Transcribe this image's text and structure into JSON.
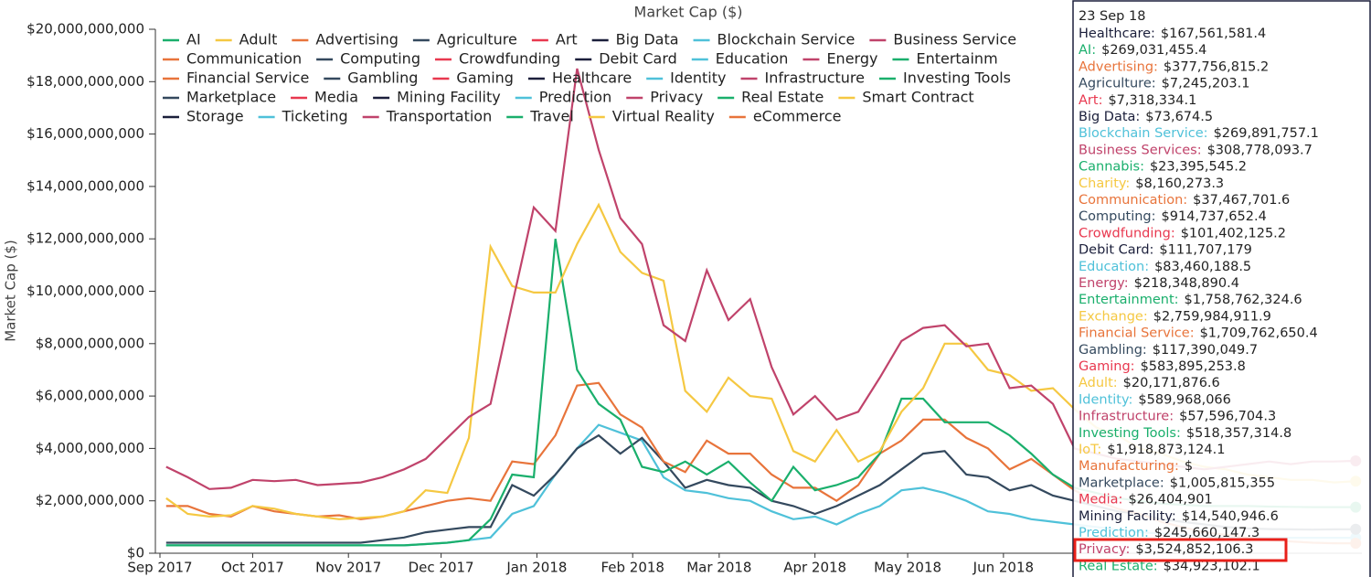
{
  "chart_data": {
    "type": "line",
    "title": "Market Cap ($)",
    "y_label": "Market Cap ($)",
    "xlim": [
      "2017-09-01",
      "2018-09-25"
    ],
    "xticks": [
      {
        "value": "2017-09-01",
        "label": "Sep 2017"
      },
      {
        "value": "2017-10-01",
        "label": "Oct 2017"
      },
      {
        "value": "2017-11-01",
        "label": "Nov 2017"
      },
      {
        "value": "2017-12-01",
        "label": "Dec 2017"
      },
      {
        "value": "2018-01-01",
        "label": "Jan 2018"
      },
      {
        "value": "2018-02-01",
        "label": "Feb 2018"
      },
      {
        "value": "2018-03-01",
        "label": "Mar 2018"
      },
      {
        "value": "2018-04-01",
        "label": "Apr 2018"
      },
      {
        "value": "2018-05-01",
        "label": "May 2018"
      },
      {
        "value": "2018-06-01",
        "label": "Jun 2018"
      }
    ],
    "ylim": [
      0,
      20000000000
    ],
    "yticks": [
      {
        "value": 0,
        "label": "$0"
      },
      {
        "value": 2000000000,
        "label": "$2,000,000,000"
      },
      {
        "value": 4000000000,
        "label": "$4,000,000,000"
      },
      {
        "value": 6000000000,
        "label": "$6,000,000,000"
      },
      {
        "value": 8000000000,
        "label": "$8,000,000,000"
      },
      {
        "value": 10000000000,
        "label": "$10,000,000,000"
      },
      {
        "value": 12000000000,
        "label": "$12,000,000,000"
      },
      {
        "value": 14000000000,
        "label": "$14,000,000,000"
      },
      {
        "value": 16000000000,
        "label": "$16,000,000,000"
      },
      {
        "value": 18000000000,
        "label": "$18,000,000,000"
      },
      {
        "value": 20000000000,
        "label": "$20,000,000,000"
      }
    ],
    "x": [
      "2017-09-03",
      "2017-09-10",
      "2017-09-17",
      "2017-09-24",
      "2017-10-01",
      "2017-10-08",
      "2017-10-15",
      "2017-10-22",
      "2017-10-29",
      "2017-11-05",
      "2017-11-12",
      "2017-11-19",
      "2017-11-26",
      "2017-12-03",
      "2017-12-10",
      "2017-12-17",
      "2017-12-24",
      "2017-12-31",
      "2018-01-07",
      "2018-01-14",
      "2018-01-21",
      "2018-01-28",
      "2018-02-04",
      "2018-02-11",
      "2018-02-18",
      "2018-02-25",
      "2018-03-04",
      "2018-03-11",
      "2018-03-18",
      "2018-03-25",
      "2018-04-01",
      "2018-04-08",
      "2018-04-15",
      "2018-04-22",
      "2018-04-29",
      "2018-05-06",
      "2018-05-13",
      "2018-05-20",
      "2018-05-27",
      "2018-06-03",
      "2018-06-10",
      "2018-06-17",
      "2018-06-24",
      "2018-07-01",
      "2018-07-08",
      "2018-07-15",
      "2018-07-22",
      "2018-07-29",
      "2018-08-05",
      "2018-08-12",
      "2018-08-19",
      "2018-08-26",
      "2018-09-02",
      "2018-09-09",
      "2018-09-16",
      "2018-09-23"
    ],
    "series": [
      {
        "name": "Identity",
        "color": "#4fc1d9",
        "values": [
          300000000.0,
          300000000.0,
          300000000.0,
          300000000.0,
          300000000.0,
          300000000.0,
          300000000.0,
          300000000.0,
          300000000.0,
          300000000.0,
          300000000.0,
          300000000.0,
          350000000.0,
          400000000.0,
          500000000.0,
          600000000.0,
          1500000000.0,
          1800000000.0,
          3000000000.0,
          4000000000.0,
          4900000000.0,
          4600000000.0,
          4300000000.0,
          2900000000.0,
          2400000000.0,
          2300000000.0,
          2100000000.0,
          2000000000.0,
          1600000000.0,
          1300000000.0,
          1400000000.0,
          1100000000.0,
          1500000000.0,
          1800000000.0,
          2400000000.0,
          2500000000.0,
          2300000000.0,
          2000000000.0,
          1600000000.0,
          1500000000.0,
          1300000000.0,
          1200000000.0,
          1100000000.0,
          1000000000.0,
          900000000.0,
          800000000.0,
          750000000.0,
          700000000.0,
          650000000.0,
          600000000.0,
          590000000.0,
          590000000.0,
          590000000.0,
          590000000.0,
          590000000.0,
          589968066
        ]
      },
      {
        "name": "Computing",
        "color": "#34495e",
        "values": [
          400000000.0,
          400000000.0,
          400000000.0,
          400000000.0,
          400000000.0,
          400000000.0,
          400000000.0,
          400000000.0,
          400000000.0,
          400000000.0,
          500000000.0,
          600000000.0,
          800000000.0,
          900000000.0,
          1000000000.0,
          1000000000.0,
          2600000000.0,
          2200000000.0,
          3000000000.0,
          4000000000.0,
          4500000000.0,
          3800000000.0,
          4400000000.0,
          3500000000.0,
          2500000000.0,
          2800000000.0,
          2600000000.0,
          2500000000.0,
          2000000000.0,
          1800000000.0,
          1500000000.0,
          1800000000.0,
          2200000000.0,
          2600000000.0,
          3200000000.0,
          3800000000.0,
          3900000000.0,
          3000000000.0,
          2900000000.0,
          2400000000.0,
          2600000000.0,
          2200000000.0,
          2000000000.0,
          1800000000.0,
          1600000000.0,
          1500000000.0,
          1300000000.0,
          1200000000.0,
          1100000000.0,
          1000000000.0,
          950000000.0,
          920000000.0,
          910000000.0,
          900000000.0,
          910000000.0,
          914737652.4
        ]
      },
      {
        "name": "Advertising",
        "color": "#e8743b",
        "values": [
          1800000000.0,
          1800000000.0,
          1500000000.0,
          1400000000.0,
          1800000000.0,
          1600000000.0,
          1500000000.0,
          1400000000.0,
          1450000000.0,
          1300000000.0,
          1400000000.0,
          1600000000.0,
          1800000000.0,
          2000000000.0,
          2100000000.0,
          2000000000.0,
          3500000000.0,
          3400000000.0,
          4500000000.0,
          6400000000.0,
          6500000000.0,
          5300000000.0,
          4800000000.0,
          3500000000.0,
          3100000000.0,
          4300000000.0,
          3800000000.0,
          3800000000.0,
          3000000000.0,
          2500000000.0,
          2500000000.0,
          2000000000.0,
          2600000000.0,
          3800000000.0,
          4300000000.0,
          5100000000.0,
          5100000000.0,
          4400000000.0,
          4000000000.0,
          3200000000.0,
          3600000000.0,
          3000000000.0,
          2400000000.0,
          2000000000.0,
          1700000000.0,
          1500000000.0,
          1200000000.0,
          1000000000.0,
          800000000.0,
          700000000.0,
          600000000.0,
          500000000.0,
          450000000.0,
          400000000.0,
          380000000.0,
          377756815.2
        ]
      },
      {
        "name": "Entertainment",
        "color": "#1aaf6c",
        "values": [
          300000000.0,
          300000000.0,
          300000000.0,
          300000000.0,
          300000000.0,
          300000000.0,
          300000000.0,
          300000000.0,
          300000000.0,
          300000000.0,
          300000000.0,
          300000000.0,
          350000000.0,
          400000000.0,
          500000000.0,
          1300000000.0,
          3000000000.0,
          2900000000.0,
          12000000000.0,
          7000000000.0,
          5700000000.0,
          5100000000.0,
          3300000000.0,
          3100000000.0,
          3500000000.0,
          3000000000.0,
          3500000000.0,
          2700000000.0,
          2000000000.0,
          3300000000.0,
          2400000000.0,
          2600000000.0,
          2900000000.0,
          3800000000.0,
          5900000000.0,
          5900000000.0,
          5000000000.0,
          5000000000.0,
          5000000000.0,
          4500000000.0,
          3800000000.0,
          3000000000.0,
          2500000000.0,
          2300000000.0,
          2100000000.0,
          2000000000.0,
          1900000000.0,
          1850000000.0,
          1800000000.0,
          1800000000.0,
          1800000000.0,
          1780000000.0,
          1770000000.0,
          1760000000.0,
          1760000000.0,
          1758762324.6
        ]
      },
      {
        "name": "Smart Contract",
        "color": "#f5c842",
        "values": [
          2100000000.0,
          1500000000.0,
          1400000000.0,
          1450000000.0,
          1800000000.0,
          1700000000.0,
          1500000000.0,
          1400000000.0,
          1300000000.0,
          1350000000.0,
          1400000000.0,
          1600000000.0,
          2400000000.0,
          2300000000.0,
          4400000000.0,
          11700000000.0,
          10200000000.0,
          9950000000.0,
          9950000000.0,
          11800000000.0,
          13300000000.0,
          11500000000.0,
          10700000000.0,
          10400000000.0,
          6200000000.0,
          5400000000.0,
          6700000000.0,
          6000000000.0,
          5900000000.0,
          3900000000.0,
          3500000000.0,
          4700000000.0,
          3500000000.0,
          3900000000.0,
          5400000000.0,
          6300000000.0,
          8000000000.0,
          8000000000.0,
          7000000000.0,
          6800000000.0,
          6200000000.0,
          6300000000.0,
          5500000000.0,
          4800000000.0,
          4500000000.0,
          4000000000.0,
          3800000000.0,
          3500000000.0,
          3300000000.0,
          3200000000.0,
          3000000000.0,
          2900000000.0,
          2800000000.0,
          2800000000.0,
          2700000000.0,
          2750000000.0
        ]
      },
      {
        "name": "Privacy",
        "color": "#c0436b",
        "values": [
          3300000000.0,
          2900000000.0,
          2450000000.0,
          2500000000.0,
          2800000000.0,
          2750000000.0,
          2800000000.0,
          2600000000.0,
          2650000000.0,
          2700000000.0,
          2900000000.0,
          3200000000.0,
          3600000000.0,
          4400000000.0,
          5200000000.0,
          5700000000.0,
          9500000000.0,
          13200000000.0,
          12300000000.0,
          18500000000.0,
          15400000000.0,
          12800000000.0,
          11800000000.0,
          8700000000.0,
          8100000000.0,
          10800000000.0,
          8900000000.0,
          9700000000.0,
          7100000000.0,
          5300000000.0,
          6000000000.0,
          5100000000.0,
          5400000000.0,
          6700000000.0,
          8100000000.0,
          8600000000.0,
          8700000000.0,
          7900000000.0,
          8000000000.0,
          6300000000.0,
          6400000000.0,
          5700000000.0,
          4000000000.0,
          3800000000.0,
          3600000000.0,
          3500000000.0,
          3400000000.0,
          3300000000.0,
          3200000000.0,
          3300000000.0,
          3400000000.0,
          3500000000.0,
          3400000000.0,
          3500000000.0,
          3500000000.0,
          3524852106.3
        ]
      }
    ],
    "legend": [
      [
        {
          "name": "AI",
          "color": "#1aaf6c"
        },
        {
          "name": "Adult",
          "color": "#f5c842"
        },
        {
          "name": "Advertising",
          "color": "#e8743b"
        },
        {
          "name": "Agriculture",
          "color": "#34495e"
        },
        {
          "name": "Art",
          "color": "#e8384f"
        },
        {
          "name": "Big Data",
          "color": "#1b1f3b"
        },
        {
          "name": "Blockchain Service",
          "color": "#4fc1d9"
        },
        {
          "name": "Business Service",
          "color": "#c0436b"
        }
      ],
      [
        {
          "name": "Communication",
          "color": "#e8743b"
        },
        {
          "name": "Computing",
          "color": "#34495e"
        },
        {
          "name": "Crowdfunding",
          "color": "#e8384f"
        },
        {
          "name": "Debit Card",
          "color": "#1b1f3b"
        },
        {
          "name": "Education",
          "color": "#4fc1d9"
        },
        {
          "name": "Energy",
          "color": "#c0436b"
        },
        {
          "name": "Entertainm",
          "color": "#1aaf6c"
        }
      ],
      [
        {
          "name": "Financial Service",
          "color": "#e8743b"
        },
        {
          "name": "Gambling",
          "color": "#34495e"
        },
        {
          "name": "Gaming",
          "color": "#e8384f"
        },
        {
          "name": "Healthcare",
          "color": "#1b1f3b"
        },
        {
          "name": "Identity",
          "color": "#4fc1d9"
        },
        {
          "name": "Infrastructure",
          "color": "#c0436b"
        },
        {
          "name": "Investing Tools",
          "color": "#1aaf6c"
        }
      ],
      [
        {
          "name": "Marketplace",
          "color": "#34495e"
        },
        {
          "name": "Media",
          "color": "#e8384f"
        },
        {
          "name": "Mining Facility",
          "color": "#1b1f3b"
        },
        {
          "name": "Prediction",
          "color": "#4fc1d9"
        },
        {
          "name": "Privacy",
          "color": "#c0436b"
        },
        {
          "name": "Real Estate",
          "color": "#1aaf6c"
        },
        {
          "name": "Smart Contract",
          "color": "#f5c842"
        }
      ],
      [
        {
          "name": "Storage",
          "color": "#1b1f3b"
        },
        {
          "name": "Ticketing",
          "color": "#4fc1d9"
        },
        {
          "name": "Transportation",
          "color": "#c0436b"
        },
        {
          "name": "Travel",
          "color": "#1aaf6c"
        },
        {
          "name": "Virtual Reality",
          "color": "#f5c842"
        },
        {
          "name": "eCommerce",
          "color": "#e8743b"
        }
      ]
    ]
  },
  "tooltip": {
    "date": "23 Sep 18",
    "entries": [
      {
        "label": "Healthcare:",
        "value": "$167,561,581.4",
        "color": "#1b1f3b"
      },
      {
        "label": "AI:",
        "value": "$269,031,455.4",
        "color": "#1aaf6c"
      },
      {
        "label": "Advertising:",
        "value": "$377,756,815.2",
        "color": "#e8743b"
      },
      {
        "label": "Agriculture:",
        "value": "$7,245,203.1",
        "color": "#34495e"
      },
      {
        "label": "Art:",
        "value": "$7,318,334.1",
        "color": "#e8384f"
      },
      {
        "label": "Big Data:",
        "value": "$73,674.5",
        "color": "#1b1f3b"
      },
      {
        "label": "Blockchain Service:",
        "value": "$269,891,757.1",
        "color": "#4fc1d9"
      },
      {
        "label": "Business Services:",
        "value": "$308,778,093.7",
        "color": "#c0436b"
      },
      {
        "label": "Cannabis:",
        "value": "$23,395,545.2",
        "color": "#1aaf6c"
      },
      {
        "label": "Charity:",
        "value": "$8,160,273.3",
        "color": "#f5c842"
      },
      {
        "label": "Communication:",
        "value": "$37,467,701.6",
        "color": "#e8743b"
      },
      {
        "label": "Computing:",
        "value": "$914,737,652.4",
        "color": "#34495e"
      },
      {
        "label": "Crowdfunding:",
        "value": "$101,402,125.2",
        "color": "#e8384f"
      },
      {
        "label": "Debit Card:",
        "value": "$111,707,179",
        "color": "#1b1f3b"
      },
      {
        "label": "Education:",
        "value": "$83,460,188.5",
        "color": "#4fc1d9"
      },
      {
        "label": "Energy:",
        "value": "$218,348,890.4",
        "color": "#c0436b"
      },
      {
        "label": "Entertainment:",
        "value": "$1,758,762,324.6",
        "color": "#1aaf6c"
      },
      {
        "label": "Exchange:",
        "value": "$2,759,984,911.9",
        "color": "#f5c842"
      },
      {
        "label": "Financial Service:",
        "value": "$1,709,762,650.4",
        "color": "#e8743b"
      },
      {
        "label": "Gambling:",
        "value": "$117,390,049.7",
        "color": "#34495e"
      },
      {
        "label": "Gaming:",
        "value": "$583,895,253.8",
        "color": "#e8384f"
      },
      {
        "label": "Adult:",
        "value": "$20,171,876.6",
        "color": "#f5c842"
      },
      {
        "label": "Identity:",
        "value": "$589,968,066",
        "color": "#4fc1d9"
      },
      {
        "label": "Infrastructure:",
        "value": "$57,596,704.3",
        "color": "#c0436b"
      },
      {
        "label": "Investing Tools:",
        "value": "$518,357,314.8",
        "color": "#1aaf6c"
      },
      {
        "label": "IoT:",
        "value": "$1,918,873,124.1",
        "color": "#f5c842"
      },
      {
        "label": "Manufacturing:",
        "value": "$",
        "color": "#e8743b"
      },
      {
        "label": "Marketplace:",
        "value": "$1,005,815,355",
        "color": "#34495e"
      },
      {
        "label": "Media:",
        "value": "$26,404,901",
        "color": "#e8384f"
      },
      {
        "label": "Mining Facility:",
        "value": "$14,540,946.6",
        "color": "#1b1f3b"
      },
      {
        "label": "Prediction:",
        "value": "$245,660,147.3",
        "color": "#4fc1d9"
      },
      {
        "label": "Privacy:",
        "value": "$3,524,852,106.3",
        "color": "#c0436b"
      },
      {
        "label": "Real Estate:",
        "value": "$34,923,102.1",
        "color": "#1aaf6c"
      }
    ]
  }
}
